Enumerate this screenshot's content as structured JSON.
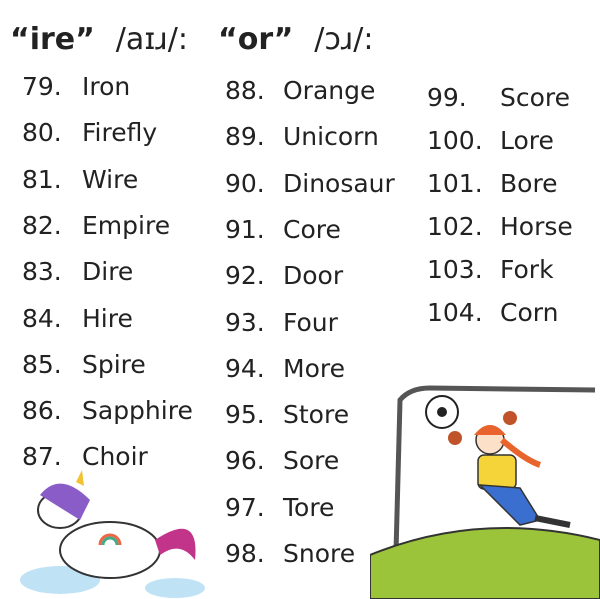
{
  "headings": [
    {
      "word": "“ire”",
      "ipa": "/aɪɹ/:"
    },
    {
      "word": "“or”",
      "ipa": "/ɔɹ/:"
    }
  ],
  "columns": [
    [
      {
        "n": "79.",
        "w": "Iron"
      },
      {
        "n": "80.",
        "w": "Firefly"
      },
      {
        "n": "81.",
        "w": "Wire"
      },
      {
        "n": "82.",
        "w": "Empire"
      },
      {
        "n": "83.",
        "w": "Dire"
      },
      {
        "n": "84.",
        "w": "Hire"
      },
      {
        "n": "85.",
        "w": "Spire"
      },
      {
        "n": "86.",
        "w": "Sapphire"
      },
      {
        "n": "87.",
        "w": "Choir"
      }
    ],
    [
      {
        "n": "88.",
        "w": "Orange"
      },
      {
        "n": "89.",
        "w": "Unicorn"
      },
      {
        "n": "90.",
        "w": "Dinosaur"
      },
      {
        "n": "91.",
        "w": "Core"
      },
      {
        "n": "92.",
        "w": "Door"
      },
      {
        "n": "93.",
        "w": "Four"
      },
      {
        "n": "94.",
        "w": "More"
      },
      {
        "n": "95.",
        "w": "Store"
      },
      {
        "n": "96.",
        "w": "Sore"
      },
      {
        "n": "97.",
        "w": "Tore"
      },
      {
        "n": "98.",
        "w": "Snore"
      }
    ],
    [
      {
        "n": "99.",
        "w": "Score"
      },
      {
        "n": "100.",
        "w": "Lore"
      },
      {
        "n": "101.",
        "w": "Bore"
      },
      {
        "n": "102.",
        "w": "Horse"
      },
      {
        "n": "103.",
        "w": "Fork"
      },
      {
        "n": "104.",
        "w": "Corn"
      }
    ]
  ]
}
